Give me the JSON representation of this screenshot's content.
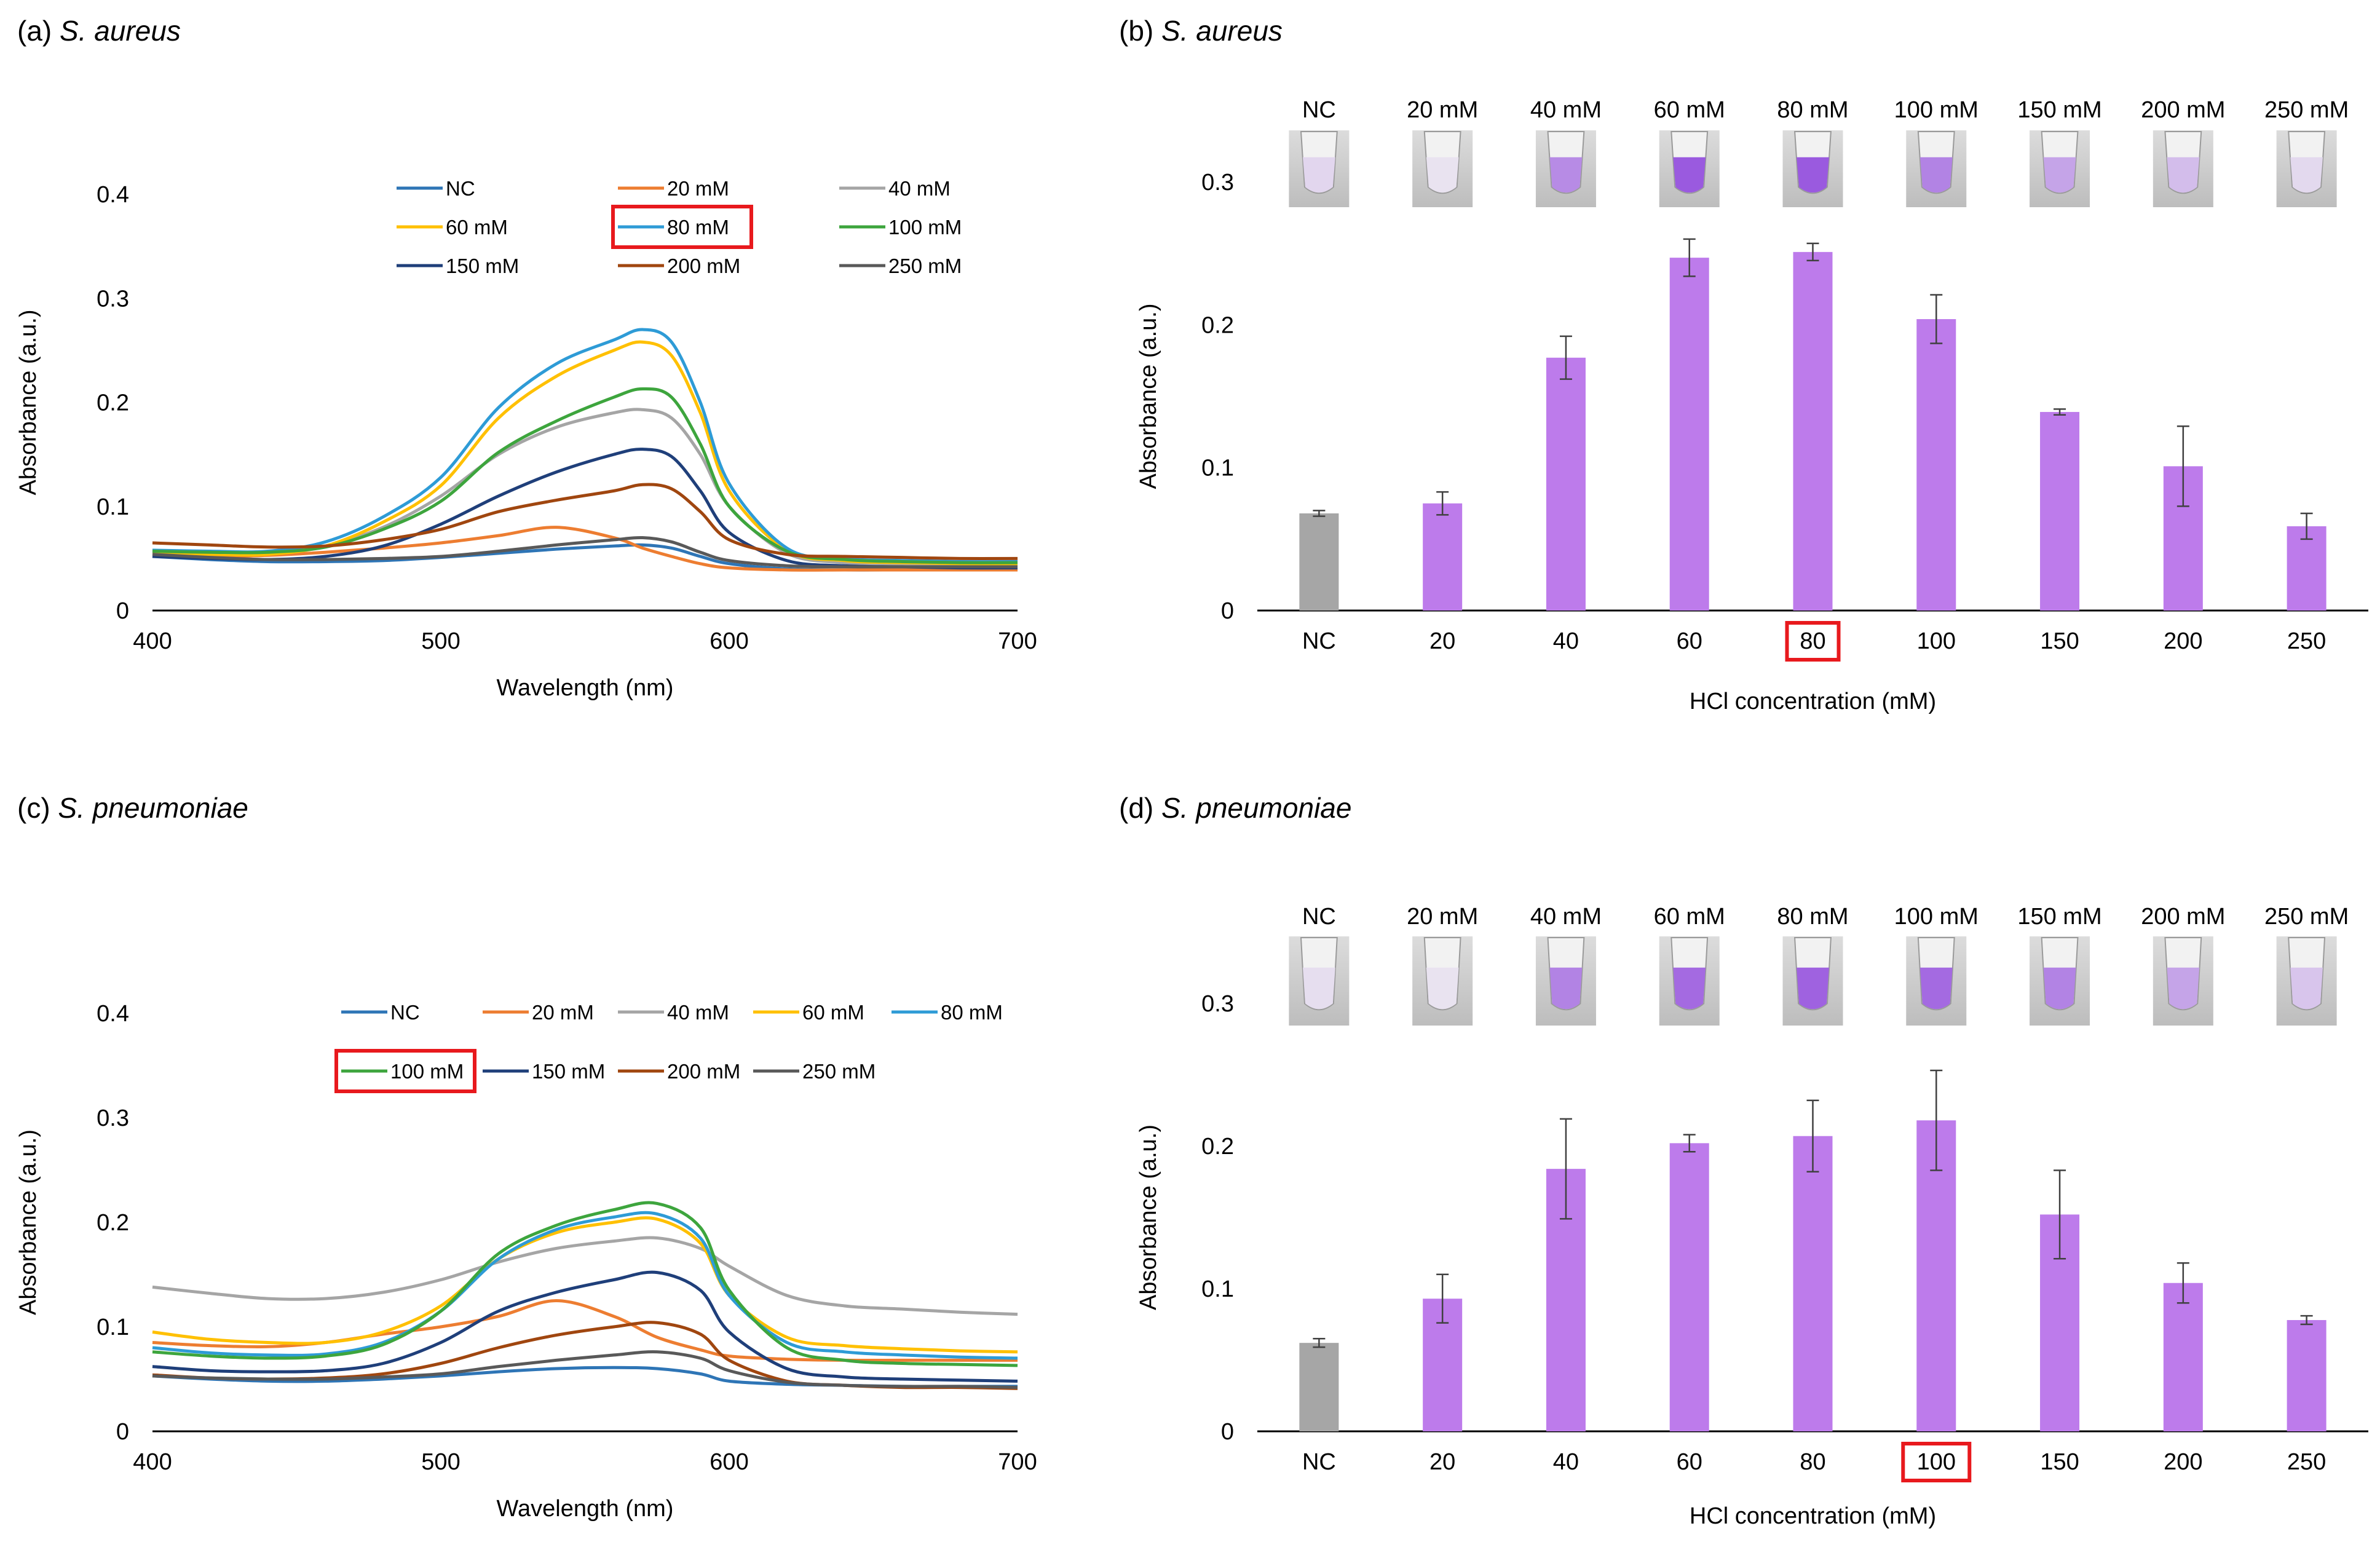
{
  "chart_data": [
    {
      "id": "a",
      "type": "line",
      "panel_label": "(a)",
      "title": "S. aureus",
      "xlabel": "Wavelength (nm)",
      "ylabel": "Absorbance (a.u.)",
      "xlim": [
        400,
        700
      ],
      "ylim": [
        0,
        0.4
      ],
      "xticks": [
        400,
        500,
        600,
        700
      ],
      "yticks": [
        0,
        0.1,
        0.2,
        0.3,
        0.4
      ],
      "ytick_labels": [
        "0",
        "0.1",
        "0.2",
        "0.3",
        "0.4"
      ],
      "highlight": "80 mM",
      "x": [
        400,
        420,
        440,
        460,
        480,
        500,
        520,
        540,
        560,
        570,
        580,
        590,
        600,
        620,
        640,
        660,
        680,
        700
      ],
      "series": [
        {
          "name": "NC",
          "color": "#2E75B6",
          "values": [
            0.052,
            0.049,
            0.047,
            0.047,
            0.048,
            0.051,
            0.055,
            0.059,
            0.062,
            0.063,
            0.06,
            0.052,
            0.045,
            0.04,
            0.039,
            0.039,
            0.039,
            0.039
          ]
        },
        {
          "name": "20 mM",
          "color": "#ED7D31",
          "values": [
            0.052,
            0.052,
            0.053,
            0.056,
            0.06,
            0.065,
            0.072,
            0.08,
            0.07,
            0.06,
            0.052,
            0.045,
            0.041,
            0.039,
            0.039,
            0.039,
            0.039,
            0.039
          ]
        },
        {
          "name": "40 mM",
          "color": "#A5A5A5",
          "values": [
            0.057,
            0.056,
            0.056,
            0.062,
            0.08,
            0.11,
            0.15,
            0.176,
            0.19,
            0.193,
            0.185,
            0.15,
            0.1,
            0.055,
            0.046,
            0.044,
            0.043,
            0.043
          ]
        },
        {
          "name": "60 mM",
          "color": "#FFC000",
          "values": [
            0.055,
            0.054,
            0.054,
            0.062,
            0.085,
            0.12,
            0.185,
            0.225,
            0.25,
            0.258,
            0.245,
            0.19,
            0.115,
            0.058,
            0.048,
            0.046,
            0.045,
            0.045
          ]
        },
        {
          "name": "80 mM",
          "color": "#2E9BD6",
          "values": [
            0.058,
            0.057,
            0.057,
            0.066,
            0.09,
            0.128,
            0.195,
            0.237,
            0.26,
            0.27,
            0.258,
            0.2,
            0.122,
            0.06,
            0.05,
            0.048,
            0.047,
            0.047
          ]
        },
        {
          "name": "100 mM",
          "color": "#3DA53D",
          "values": [
            0.057,
            0.056,
            0.056,
            0.061,
            0.078,
            0.105,
            0.152,
            0.182,
            0.205,
            0.213,
            0.205,
            0.16,
            0.1,
            0.057,
            0.049,
            0.047,
            0.046,
            0.046
          ]
        },
        {
          "name": "150 mM",
          "color": "#1F3F7A",
          "values": [
            0.052,
            0.05,
            0.049,
            0.052,
            0.062,
            0.083,
            0.11,
            0.133,
            0.15,
            0.155,
            0.148,
            0.115,
            0.075,
            0.048,
            0.043,
            0.042,
            0.041,
            0.041
          ]
        },
        {
          "name": "200 mM",
          "color": "#A0460F",
          "values": [
            0.065,
            0.063,
            0.061,
            0.062,
            0.068,
            0.078,
            0.095,
            0.106,
            0.115,
            0.121,
            0.117,
            0.095,
            0.068,
            0.054,
            0.052,
            0.051,
            0.05,
            0.05
          ]
        },
        {
          "name": "250 mM",
          "color": "#595959",
          "values": [
            0.054,
            0.051,
            0.049,
            0.049,
            0.05,
            0.052,
            0.057,
            0.063,
            0.068,
            0.07,
            0.066,
            0.056,
            0.048,
            0.043,
            0.042,
            0.042,
            0.042,
            0.042
          ]
        }
      ]
    },
    {
      "id": "b",
      "type": "bar",
      "panel_label": "(b)",
      "title": "S. aureus",
      "xlabel": "HCl concentration (mM)",
      "ylabel": "Absorbance (a.u.)",
      "ylim": [
        0,
        0.3
      ],
      "yticks": [
        0,
        0.1,
        0.2,
        0.3
      ],
      "ytick_labels": [
        "0",
        "0.1",
        "0.2",
        "0.3"
      ],
      "categories": [
        "NC",
        "20",
        "40",
        "60",
        "80",
        "100",
        "150",
        "200",
        "250"
      ],
      "tube_labels": [
        "NC",
        "20 mM",
        "40 mM",
        "60 mM",
        "80 mM",
        "100 mM",
        "150 mM",
        "200 mM",
        "250 mM"
      ],
      "values": [
        0.068,
        0.075,
        0.177,
        0.247,
        0.251,
        0.204,
        0.139,
        0.101,
        0.059
      ],
      "errors": [
        0.002,
        0.008,
        0.015,
        0.013,
        0.006,
        0.017,
        0.002,
        0.028,
        0.009
      ],
      "highlight": "80",
      "colors": {
        "nc": "#A6A6A6",
        "sample": "#BD7BEB"
      },
      "tube_intensity": [
        0.1,
        0.02,
        0.55,
        0.85,
        0.85,
        0.6,
        0.4,
        0.25,
        0.08
      ]
    },
    {
      "id": "c",
      "type": "line",
      "panel_label": "(c)",
      "title": "S. pneumoniae",
      "xlabel": "Wavelength (nm)",
      "ylabel": "Absorbance (a.u.)",
      "xlim": [
        400,
        700
      ],
      "ylim": [
        0,
        0.4
      ],
      "xticks": [
        400,
        500,
        600,
        700
      ],
      "yticks": [
        0,
        0.1,
        0.2,
        0.3,
        0.4
      ],
      "ytick_labels": [
        "0",
        "0.1",
        "0.2",
        "0.3",
        "0.4"
      ],
      "highlight": "100 mM",
      "x": [
        400,
        420,
        440,
        460,
        480,
        500,
        520,
        540,
        560,
        575,
        590,
        600,
        620,
        640,
        660,
        680,
        700
      ],
      "series": [
        {
          "name": "NC",
          "color": "#2E75B6",
          "values": [
            0.053,
            0.05,
            0.048,
            0.048,
            0.05,
            0.053,
            0.057,
            0.06,
            0.061,
            0.06,
            0.055,
            0.048,
            0.045,
            0.044,
            0.043,
            0.043,
            0.043
          ]
        },
        {
          "name": "20 mM",
          "color": "#ED7D31",
          "values": [
            0.085,
            0.082,
            0.081,
            0.085,
            0.093,
            0.1,
            0.11,
            0.125,
            0.11,
            0.09,
            0.078,
            0.072,
            0.069,
            0.068,
            0.068,
            0.068,
            0.068
          ]
        },
        {
          "name": "40 mM",
          "color": "#A5A5A5",
          "values": [
            0.138,
            0.132,
            0.127,
            0.127,
            0.133,
            0.145,
            0.162,
            0.175,
            0.182,
            0.185,
            0.175,
            0.158,
            0.13,
            0.12,
            0.117,
            0.114,
            0.112
          ]
        },
        {
          "name": "60 mM",
          "color": "#FFC000",
          "values": [
            0.095,
            0.088,
            0.085,
            0.085,
            0.095,
            0.12,
            0.165,
            0.19,
            0.2,
            0.203,
            0.18,
            0.13,
            0.09,
            0.082,
            0.079,
            0.077,
            0.076
          ]
        },
        {
          "name": "80 mM",
          "color": "#2E9BD6",
          "values": [
            0.08,
            0.075,
            0.073,
            0.074,
            0.085,
            0.115,
            0.165,
            0.193,
            0.205,
            0.208,
            0.185,
            0.13,
            0.085,
            0.076,
            0.073,
            0.071,
            0.07
          ]
        },
        {
          "name": "100 mM",
          "color": "#3DA53D",
          "values": [
            0.076,
            0.072,
            0.07,
            0.072,
            0.083,
            0.115,
            0.17,
            0.197,
            0.212,
            0.218,
            0.195,
            0.135,
            0.08,
            0.068,
            0.065,
            0.064,
            0.063
          ]
        },
        {
          "name": "150 mM",
          "color": "#1F3F7A",
          "values": [
            0.062,
            0.058,
            0.057,
            0.058,
            0.065,
            0.085,
            0.115,
            0.133,
            0.145,
            0.152,
            0.135,
            0.095,
            0.06,
            0.052,
            0.05,
            0.049,
            0.048
          ]
        },
        {
          "name": "200 mM",
          "color": "#A0460F",
          "values": [
            0.054,
            0.051,
            0.05,
            0.051,
            0.055,
            0.065,
            0.08,
            0.092,
            0.1,
            0.104,
            0.093,
            0.068,
            0.048,
            0.044,
            0.042,
            0.042,
            0.041
          ]
        },
        {
          "name": "250 mM",
          "color": "#595959",
          "values": [
            0.053,
            0.051,
            0.05,
            0.05,
            0.052,
            0.055,
            0.062,
            0.068,
            0.073,
            0.076,
            0.07,
            0.058,
            0.047,
            0.044,
            0.043,
            0.043,
            0.042
          ]
        }
      ]
    },
    {
      "id": "d",
      "type": "bar",
      "panel_label": "(d)",
      "title": "S. pneumoniae",
      "xlabel": "HCl concentration (mM)",
      "ylabel": "Absorbance (a.u.)",
      "ylim": [
        0,
        0.3
      ],
      "yticks": [
        0,
        0.1,
        0.2,
        0.3
      ],
      "ytick_labels": [
        "0",
        "0.1",
        "0.2",
        "0.3"
      ],
      "categories": [
        "NC",
        "20",
        "40",
        "60",
        "80",
        "100",
        "150",
        "200",
        "250"
      ],
      "tube_labels": [
        "NC",
        "20 mM",
        "40 mM",
        "60 mM",
        "80 mM",
        "100 mM",
        "150 mM",
        "200 mM",
        "250 mM"
      ],
      "values": [
        0.062,
        0.093,
        0.184,
        0.202,
        0.207,
        0.218,
        0.152,
        0.104,
        0.078
      ],
      "errors": [
        0.003,
        0.017,
        0.035,
        0.006,
        0.025,
        0.035,
        0.031,
        0.014,
        0.003
      ],
      "highlight": "100",
      "colors": {
        "nc": "#A6A6A6",
        "sample": "#BD7BEB"
      },
      "tube_intensity": [
        0.05,
        0.02,
        0.6,
        0.75,
        0.8,
        0.75,
        0.6,
        0.4,
        0.2
      ]
    }
  ]
}
